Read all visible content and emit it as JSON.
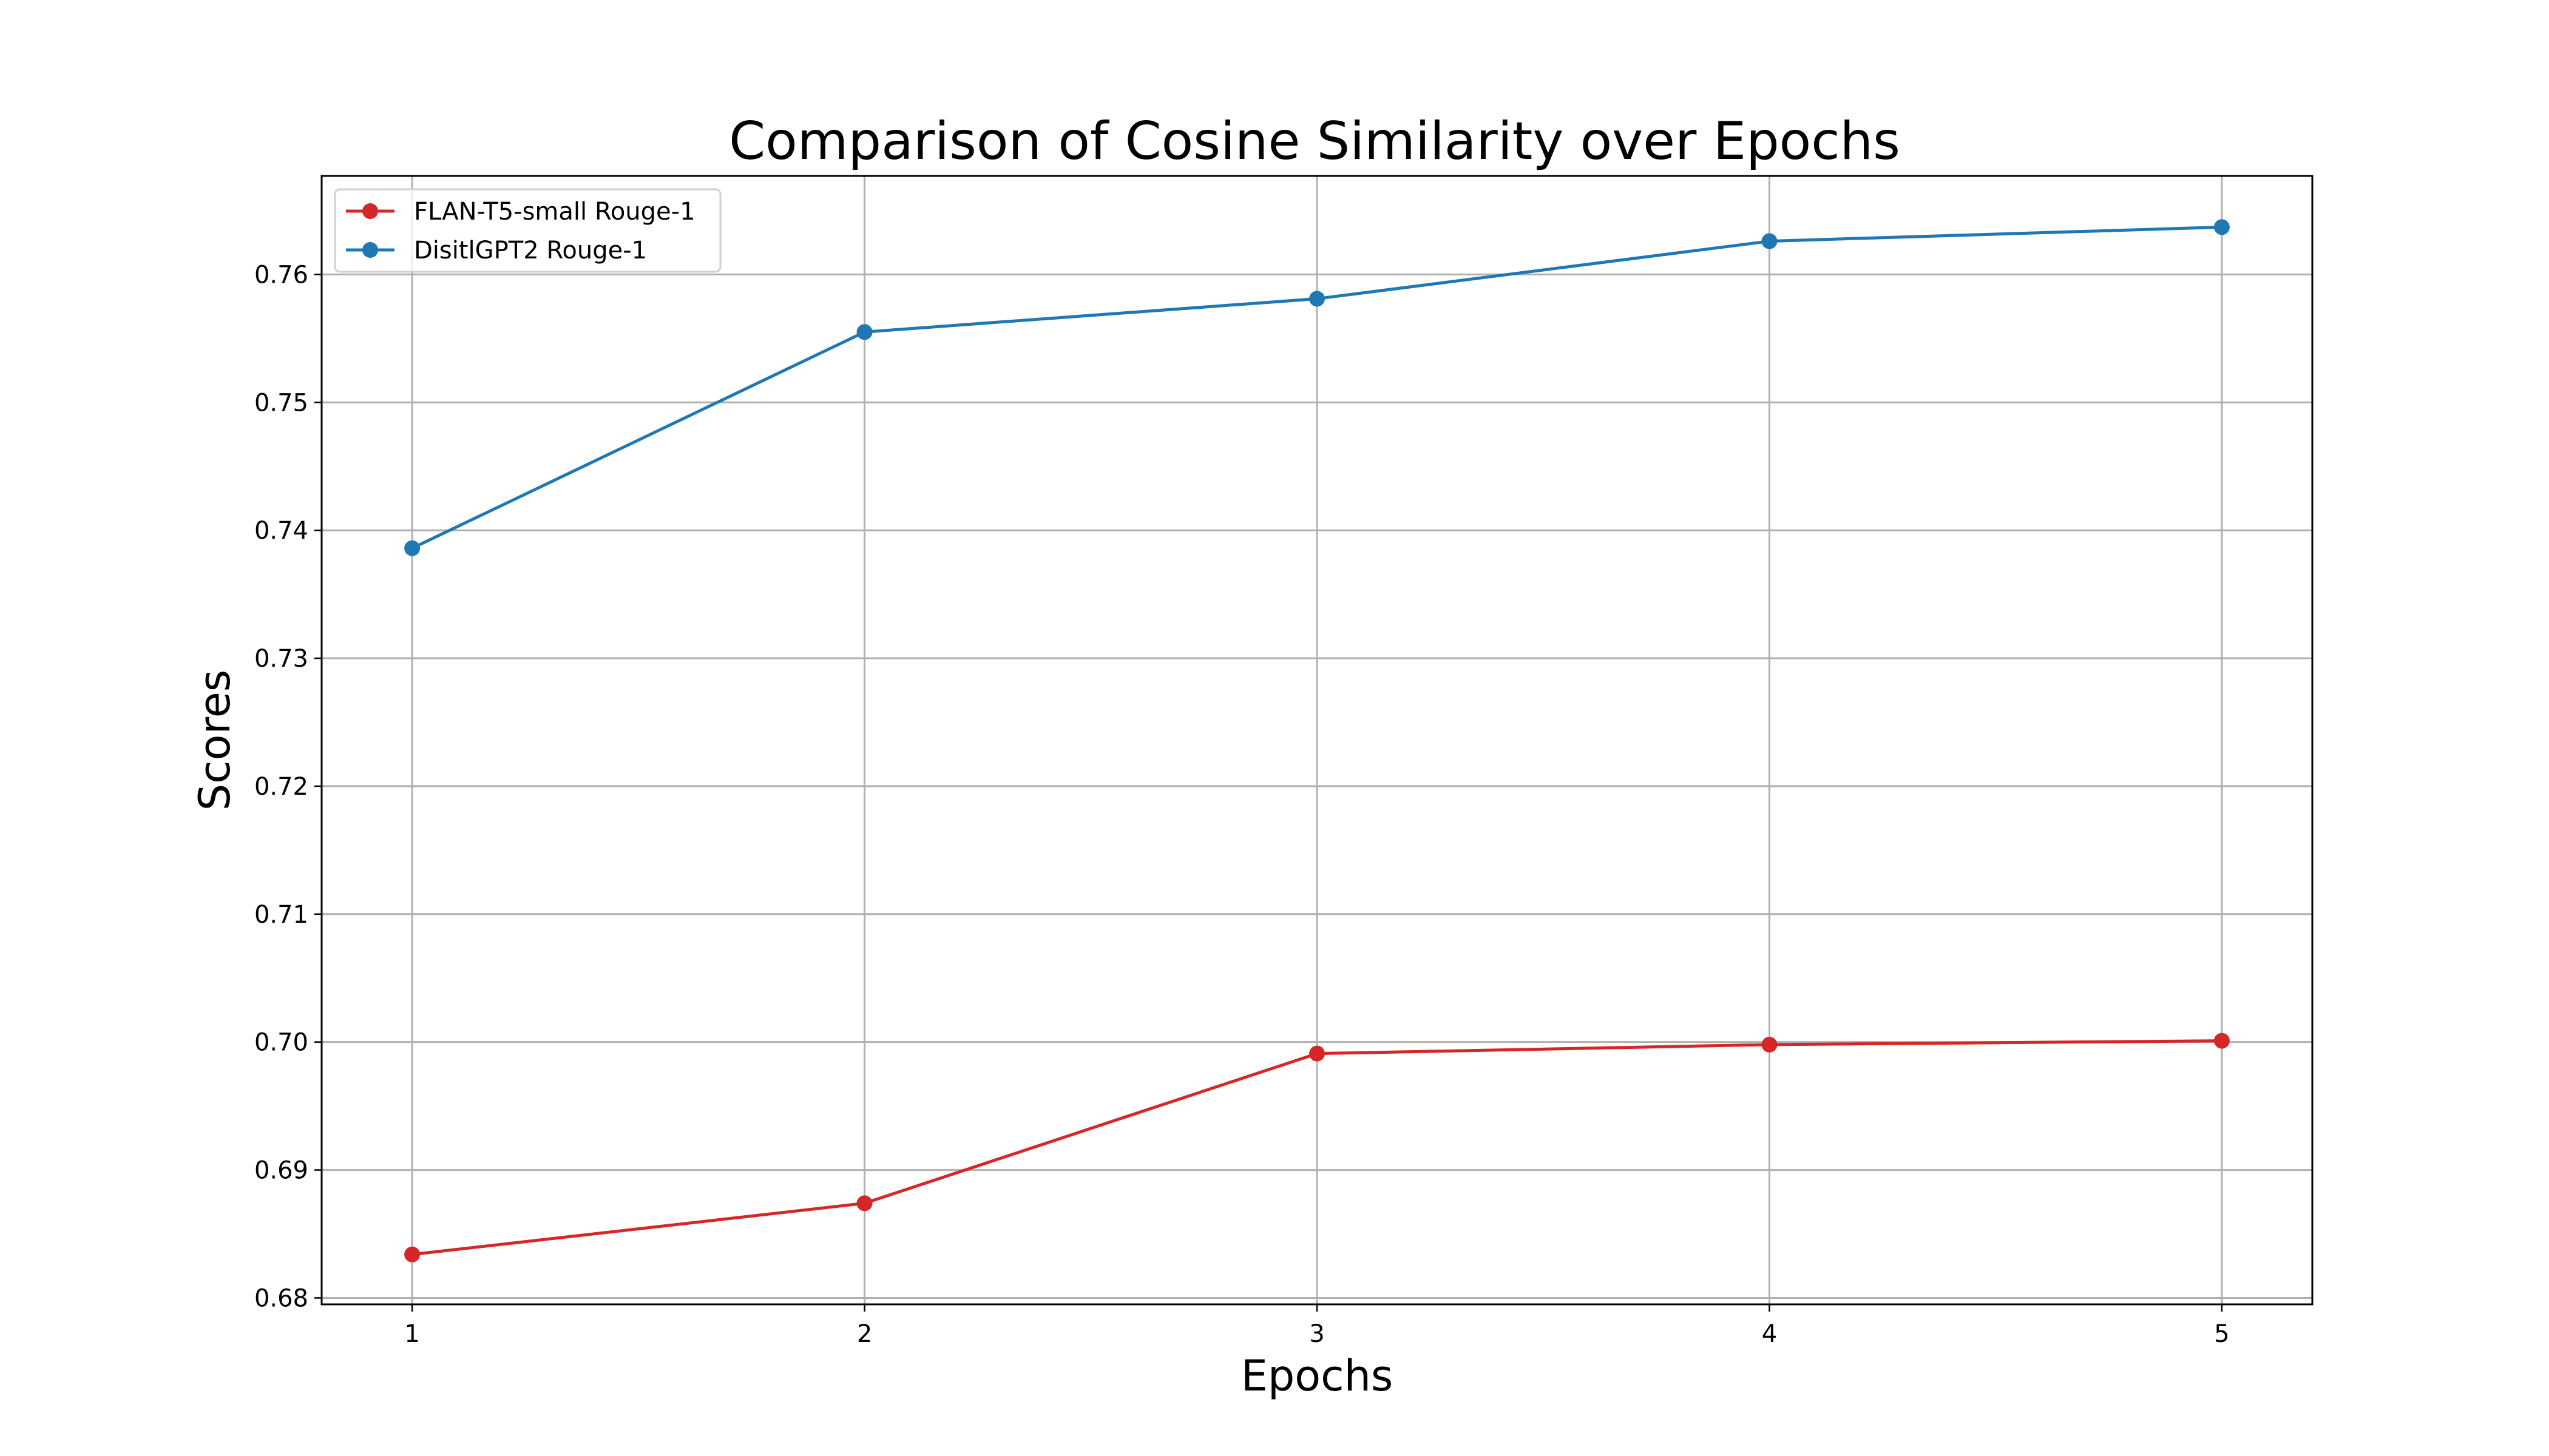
{
  "chart_data": {
    "type": "line",
    "title": "Comparison of Cosine Similarity over Epochs",
    "xlabel": "Epochs",
    "ylabel": "Scores",
    "x": [
      1,
      2,
      3,
      4,
      5
    ],
    "x_tick_labels": [
      "1",
      "2",
      "3",
      "4",
      "5"
    ],
    "xlim": [
      0.8,
      5.2
    ],
    "ylim": [
      0.6795,
      0.7677
    ],
    "y_ticks": [
      0.68,
      0.69,
      0.7,
      0.71,
      0.72,
      0.73,
      0.74,
      0.75,
      0.76
    ],
    "y_tick_labels": [
      "0.68",
      "0.69",
      "0.70",
      "0.71",
      "0.72",
      "0.73",
      "0.74",
      "0.75",
      "0.76"
    ],
    "grid": true,
    "legend_position": "top-left",
    "markers": "circle",
    "series": [
      {
        "name": "FLAN-T5-small Rouge-1",
        "color": "#d62728",
        "values": [
          0.6834,
          0.6874,
          0.6991,
          0.6998,
          0.7001
        ]
      },
      {
        "name": "DisitlGPT2 Rouge-1",
        "color": "#1f77b4",
        "values": [
          0.7386,
          0.7555,
          0.7581,
          0.7626,
          0.7637
        ]
      }
    ]
  }
}
